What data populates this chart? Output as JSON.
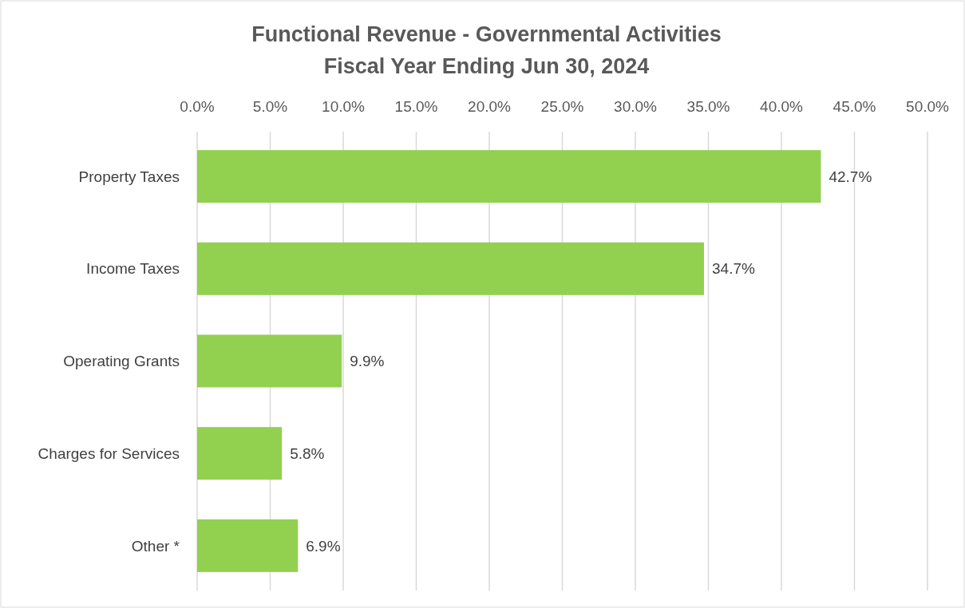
{
  "chart_data": {
    "type": "bar",
    "orientation": "horizontal",
    "title": "Functional Revenue - Governmental Activities",
    "subtitle": "Fiscal Year Ending Jun 30, 2024",
    "categories": [
      "Property Taxes",
      "Income Taxes",
      "Operating Grants",
      "Charges for Services",
      "Other *"
    ],
    "values": [
      42.7,
      34.7,
      9.9,
      5.8,
      6.9
    ],
    "value_labels": [
      "42.7%",
      "34.7%",
      "9.9%",
      "5.8%",
      "6.9%"
    ],
    "color": "#92d050",
    "xlim": [
      0,
      50
    ],
    "xticks": [
      {
        "value": 0,
        "label": "0.0%"
      },
      {
        "value": 5,
        "label": "5.0%"
      },
      {
        "value": 10,
        "label": "10.0%"
      },
      {
        "value": 15,
        "label": "15.0%"
      },
      {
        "value": 20,
        "label": "20.0%"
      },
      {
        "value": 25,
        "label": "25.0%"
      },
      {
        "value": 30,
        "label": "30.0%"
      },
      {
        "value": 35,
        "label": "35.0%"
      },
      {
        "value": 40,
        "label": "40.0%"
      },
      {
        "value": 45,
        "label": "45.0%"
      },
      {
        "value": 50,
        "label": "50.0%"
      }
    ],
    "grid": "x"
  }
}
